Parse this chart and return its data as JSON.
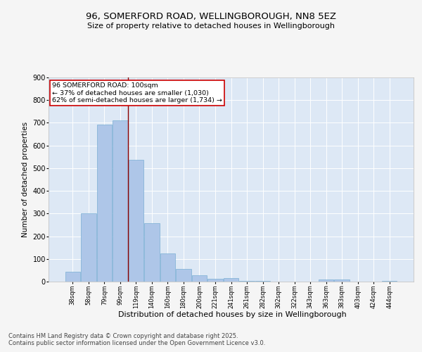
{
  "title_line1": "96, SOMERFORD ROAD, WELLINGBOROUGH, NN8 5EZ",
  "title_line2": "Size of property relative to detached houses in Wellingborough",
  "xlabel": "Distribution of detached houses by size in Wellingborough",
  "ylabel": "Number of detached properties",
  "categories": [
    "38sqm",
    "58sqm",
    "79sqm",
    "99sqm",
    "119sqm",
    "140sqm",
    "160sqm",
    "180sqm",
    "200sqm",
    "221sqm",
    "241sqm",
    "261sqm",
    "282sqm",
    "302sqm",
    "322sqm",
    "343sqm",
    "363sqm",
    "383sqm",
    "403sqm",
    "424sqm",
    "444sqm"
  ],
  "values": [
    42,
    300,
    693,
    710,
    536,
    258,
    123,
    57,
    28,
    13,
    16,
    4,
    4,
    1,
    1,
    1,
    8,
    9,
    1,
    1,
    2
  ],
  "bar_color": "#aec6e8",
  "bar_edge_color": "#7aafd4",
  "bg_color": "#dde8f5",
  "grid_color": "#ffffff",
  "vline_x": 3.5,
  "vline_color": "#8b0000",
  "annotation_text": "96 SOMERFORD ROAD: 100sqm\n← 37% of detached houses are smaller (1,030)\n62% of semi-detached houses are larger (1,734) →",
  "annotation_box_color": "#ffffff",
  "annotation_box_edge": "#cc0000",
  "footer_text": "Contains HM Land Registry data © Crown copyright and database right 2025.\nContains public sector information licensed under the Open Government Licence v3.0.",
  "ylim": [
    0,
    900
  ],
  "yticks": [
    0,
    100,
    200,
    300,
    400,
    500,
    600,
    700,
    800,
    900
  ],
  "fig_bg_color": "#f5f5f5"
}
